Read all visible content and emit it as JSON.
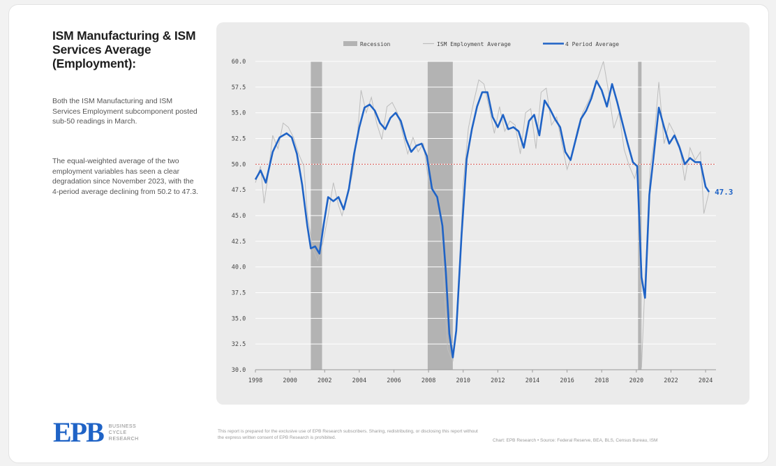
{
  "sidebar": {
    "title": "ISM Manufacturing & ISM Services Average (Employment):",
    "paragraph1": "Both the ISM Manufacturing and ISM Services Employment subcomponent posted sub-50 readings in March.",
    "paragraph2": "The equal-weighted average of the two employment variables has seen a clear degradation since November 2023, with the 4-period average declining from 50.2 to 47.3."
  },
  "footer": {
    "logo_text": "EPB",
    "logo_sub": [
      "BUSINESS",
      "CYCLE",
      "RESEARCH"
    ],
    "disclaimer": "This report is prepared for the exclusive use of EPB Research subscribers. Sharing, redistributing, or disclosing this report without the express written consent of EPB Research is prohibited.",
    "source": "Chart: EPB Research  •  Source: Federal Reserve, BEA, BLS, Census Bureau, ISM"
  },
  "colors": {
    "accent": "#1f63c6",
    "raw_series": "#bdbdbd",
    "recession": "#b3b3b3",
    "reference_line": "#d9534f"
  },
  "chart_data": {
    "type": "line",
    "xlim": [
      1998,
      2024.6
    ],
    "ylim": [
      30,
      60
    ],
    "y_ticks": [
      "30.0",
      "32.5",
      "35.0",
      "37.5",
      "40.0",
      "42.5",
      "45.0",
      "47.5",
      "50.0",
      "52.5",
      "55.0",
      "57.5",
      "60.0"
    ],
    "x_ticks": [
      "1998",
      "2000",
      "2002",
      "2004",
      "2006",
      "2008",
      "2010",
      "2012",
      "2014",
      "2016",
      "2018",
      "2020",
      "2022",
      "2024"
    ],
    "reference_line": 50,
    "grid": true,
    "legend_position": "top",
    "legend": [
      "Recession",
      "ISM Employment Average",
      "4 Period Average"
    ],
    "recessions": [
      [
        2001.2,
        2001.85
      ],
      [
        2007.95,
        2009.4
      ],
      [
        2020.1,
        2020.3
      ]
    ],
    "series": [
      {
        "name": "ISM Employment Average",
        "x": [
          1998.0,
          1998.3,
          1998.5,
          1998.7,
          1999.0,
          1999.3,
          1999.6,
          1999.9,
          2000.2,
          2000.5,
          2000.8,
          2001.0,
          2001.3,
          2001.6,
          2001.9,
          2002.2,
          2002.5,
          2002.8,
          2003.0,
          2003.3,
          2003.6,
          2003.9,
          2004.1,
          2004.4,
          2004.7,
          2005.0,
          2005.3,
          2005.6,
          2005.9,
          2006.2,
          2006.5,
          2006.8,
          2007.1,
          2007.4,
          2007.7,
          2008.0,
          2008.3,
          2008.6,
          2008.8,
          2009.1,
          2009.4,
          2009.7,
          2010.0,
          2010.3,
          2010.6,
          2010.9,
          2011.2,
          2011.5,
          2011.8,
          2012.1,
          2012.4,
          2012.7,
          2013.0,
          2013.3,
          2013.6,
          2013.9,
          2014.2,
          2014.5,
          2014.8,
          2015.1,
          2015.4,
          2015.7,
          2016.0,
          2016.3,
          2016.6,
          2016.9,
          2017.2,
          2017.5,
          2017.8,
          2018.1,
          2018.4,
          2018.7,
          2019.0,
          2019.3,
          2019.6,
          2019.9,
          2020.1,
          2020.3,
          2020.5,
          2020.8,
          2021.0,
          2021.3,
          2021.6,
          2021.9,
          2022.2,
          2022.5,
          2022.8,
          2023.1,
          2023.4,
          2023.7,
          2023.9,
          2024.2
        ],
        "values": [
          48.2,
          49.8,
          46.2,
          48.5,
          52.8,
          51.5,
          54.0,
          53.6,
          52.6,
          51.0,
          49.8,
          45.2,
          41.8,
          40.6,
          42.4,
          45.0,
          48.2,
          46.0,
          45.0,
          46.8,
          49.0,
          53.0,
          57.2,
          55.0,
          56.5,
          54.0,
          52.4,
          55.6,
          56.0,
          55.0,
          53.0,
          51.0,
          52.6,
          51.2,
          52.0,
          48.4,
          47.8,
          46.4,
          41.0,
          32.0,
          30.8,
          36.0,
          48.0,
          53.5,
          56.0,
          58.2,
          57.8,
          55.5,
          53.0,
          55.6,
          53.2,
          54.2,
          53.8,
          51.0,
          55.0,
          55.4,
          51.5,
          57.0,
          57.4,
          53.8,
          54.6,
          52.0,
          49.5,
          51.0,
          53.4,
          55.0,
          56.0,
          57.2,
          58.5,
          60.0,
          57.0,
          53.5,
          55.0,
          51.4,
          49.8,
          48.6,
          50.0,
          30.2,
          38.5,
          49.6,
          52.0,
          58.0,
          52.0,
          54.0,
          53.0,
          51.8,
          48.4,
          51.6,
          50.4,
          51.2,
          45.2,
          47.3
        ]
      },
      {
        "name": "4 Period Average",
        "x": [
          1998.0,
          1998.3,
          1998.6,
          1999.0,
          1999.4,
          1999.8,
          2000.1,
          2000.4,
          2000.7,
          2001.0,
          2001.2,
          2001.45,
          2001.7,
          2001.95,
          2002.2,
          2002.5,
          2002.8,
          2003.1,
          2003.4,
          2003.7,
          2004.0,
          2004.3,
          2004.6,
          2004.9,
          2005.2,
          2005.5,
          2005.8,
          2006.1,
          2006.4,
          2006.7,
          2007.0,
          2007.3,
          2007.6,
          2007.9,
          2008.2,
          2008.5,
          2008.8,
          2009.0,
          2009.2,
          2009.4,
          2009.6,
          2009.9,
          2010.2,
          2010.5,
          2010.8,
          2011.1,
          2011.4,
          2011.7,
          2012.0,
          2012.3,
          2012.6,
          2012.9,
          2013.2,
          2013.5,
          2013.8,
          2014.1,
          2014.4,
          2014.7,
          2015.0,
          2015.3,
          2015.6,
          2015.9,
          2016.2,
          2016.5,
          2016.8,
          2017.1,
          2017.4,
          2017.7,
          2018.0,
          2018.3,
          2018.6,
          2018.9,
          2019.2,
          2019.5,
          2019.8,
          2020.05,
          2020.3,
          2020.5,
          2020.75,
          2021.0,
          2021.3,
          2021.6,
          2021.9,
          2022.2,
          2022.5,
          2022.8,
          2023.1,
          2023.4,
          2023.7,
          2024.0,
          2024.2
        ],
        "values": [
          48.5,
          49.4,
          48.2,
          51.2,
          52.6,
          53.0,
          52.6,
          51.0,
          48.0,
          44.0,
          41.8,
          42.0,
          41.3,
          44.2,
          46.8,
          46.4,
          46.8,
          45.6,
          47.6,
          51.0,
          53.6,
          55.5,
          55.8,
          55.2,
          54.0,
          53.4,
          54.5,
          55.0,
          54.2,
          52.4,
          51.2,
          51.8,
          52.0,
          50.8,
          47.6,
          46.8,
          44.0,
          39.5,
          33.5,
          31.2,
          33.8,
          43.0,
          50.5,
          53.4,
          55.6,
          57.0,
          57.0,
          54.6,
          53.6,
          54.8,
          53.4,
          53.6,
          53.2,
          51.6,
          54.2,
          54.8,
          52.8,
          56.2,
          55.4,
          54.4,
          53.6,
          51.2,
          50.4,
          52.4,
          54.4,
          55.2,
          56.4,
          58.1,
          57.2,
          55.6,
          57.8,
          56.0,
          54.0,
          52.0,
          50.2,
          49.8,
          39.0,
          37.0,
          47.0,
          50.8,
          55.5,
          53.6,
          52.0,
          52.8,
          51.6,
          50.0,
          50.6,
          50.2,
          50.2,
          47.8,
          47.3
        ]
      }
    ],
    "last_value_label": "47.3"
  }
}
